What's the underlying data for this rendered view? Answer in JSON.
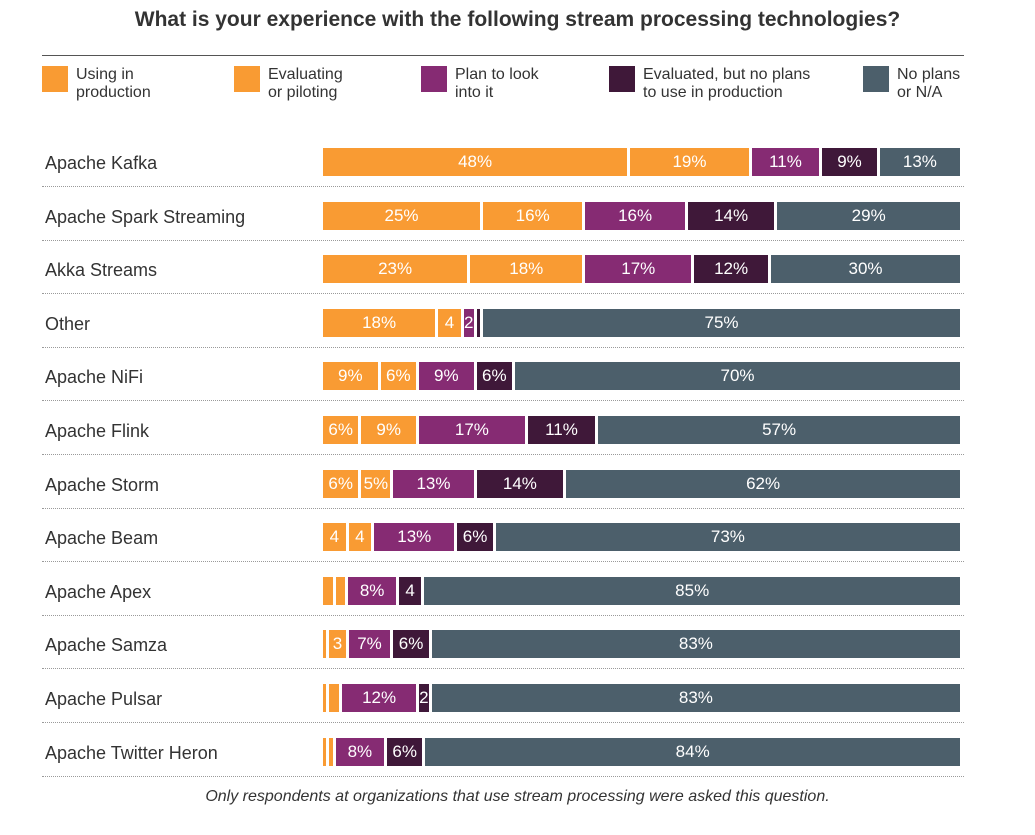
{
  "chart_data": {
    "type": "bar",
    "orientation": "horizontal-stacked-100",
    "title": "What is your experience with the following stream processing technologies?",
    "footnote": "Only respondents at organizations that use stream processing were asked this question.",
    "legend_position": "top",
    "categories": [
      "Apache Kafka",
      "Apache Spark Streaming",
      "Akka Streams",
      "Other",
      "Apache NiFi",
      "Apache Flink",
      "Apache Storm",
      "Apache Beam",
      "Apache Apex",
      "Apache Samza",
      "Apache Pulsar",
      "Apache Twitter Heron"
    ],
    "series": [
      {
        "name": "Using in production",
        "color": "#F99B33",
        "values": [
          48,
          25,
          23,
          18,
          9,
          6,
          6,
          4,
          2,
          1,
          1,
          1
        ],
        "labels": [
          "48%",
          "25%",
          "23%",
          "18%",
          "9%",
          "6%",
          "6%",
          "4",
          "",
          "",
          "",
          ""
        ]
      },
      {
        "name": "Evaluating or piloting",
        "color": "#F99B33",
        "values": [
          19,
          16,
          18,
          4,
          6,
          9,
          5,
          4,
          2,
          3,
          2,
          1
        ],
        "labels": [
          "19%",
          "16%",
          "18%",
          "4",
          "6%",
          "9%",
          "5%",
          "4",
          "",
          "3",
          "",
          ""
        ]
      },
      {
        "name": "Plan to look into it",
        "color": "#862B73",
        "values": [
          11,
          16,
          17,
          2,
          9,
          17,
          13,
          13,
          8,
          7,
          12,
          8
        ],
        "labels": [
          "11%",
          "16%",
          "17%",
          "2",
          "9%",
          "17%",
          "13%",
          "13%",
          "8%",
          "7%",
          "12%",
          "8%"
        ]
      },
      {
        "name": "Evaluated, but no plans to use in production",
        "color": "#3F1839",
        "values": [
          9,
          14,
          12,
          1,
          6,
          11,
          14,
          6,
          4,
          6,
          2,
          6
        ],
        "labels": [
          "9%",
          "14%",
          "12%",
          "",
          "6%",
          "11%",
          "14%",
          "6%",
          "4",
          "6%",
          "2",
          "6%"
        ]
      },
      {
        "name": "No plans or N/A",
        "color": "#4C5F6B",
        "values": [
          13,
          29,
          30,
          75,
          70,
          57,
          62,
          73,
          85,
          83,
          83,
          84
        ],
        "labels": [
          "13%",
          "29%",
          "30%",
          "75%",
          "70%",
          "57%",
          "62%",
          "73%",
          "85%",
          "83%",
          "83%",
          "84%"
        ]
      }
    ],
    "legend": [
      {
        "line1": "Using in",
        "line2": "production",
        "color": "#F99B33"
      },
      {
        "line1": "Evaluating",
        "line2": "or piloting",
        "color": "#F99B33"
      },
      {
        "line1": "Plan to look",
        "line2": "into it",
        "color": "#862B73"
      },
      {
        "line1": "Evaluated, but no plans",
        "line2": "to use in production",
        "color": "#3F1839"
      },
      {
        "line1": "No plans",
        "line2": "or N/A",
        "color": "#4C5F6B"
      }
    ]
  }
}
